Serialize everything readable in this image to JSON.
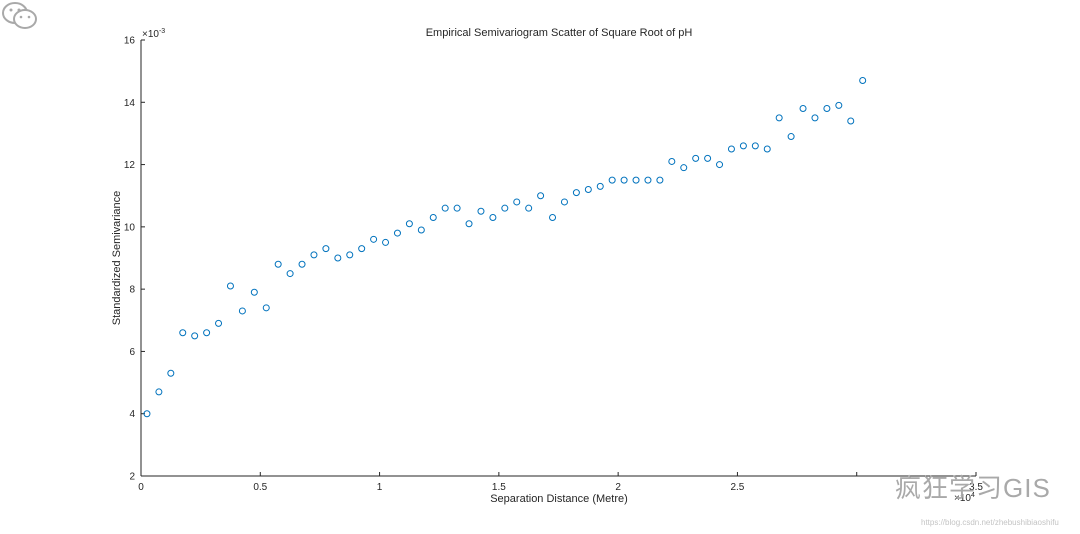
{
  "chart_data": {
    "type": "scatter",
    "title": "Empirical Semivariogram Scatter of Square Root of pH",
    "xlabel": "Separation Distance (Metre)",
    "ylabel": "Standardized Semivariance",
    "xlim": [
      0,
      35000
    ],
    "ylim": [
      0.002,
      0.016
    ],
    "x_exponent_label": "×10",
    "x_exponent_power": "4",
    "y_exponent_label": "×10",
    "y_exponent_power": "-3",
    "x_ticks": [
      0,
      5000,
      10000,
      15000,
      20000,
      25000,
      30000,
      35000
    ],
    "x_tick_labels": [
      "0",
      "0.5",
      "1",
      "1.5",
      "2",
      "2.5",
      "",
      "3.5"
    ],
    "y_ticks": [
      0.002,
      0.004,
      0.006,
      0.008,
      0.01,
      0.012,
      0.014,
      0.016
    ],
    "y_tick_labels": [
      "2",
      "4",
      "6",
      "8",
      "10",
      "12",
      "14",
      "16"
    ],
    "marker_color": "#0072BD",
    "grid": false,
    "legend": "none",
    "points": [
      [
        250,
        0.004
      ],
      [
        750,
        0.0047
      ],
      [
        1250,
        0.0053
      ],
      [
        1750,
        0.0066
      ],
      [
        2250,
        0.0065
      ],
      [
        2750,
        0.0066
      ],
      [
        3250,
        0.0069
      ],
      [
        3750,
        0.0081
      ],
      [
        4250,
        0.0073
      ],
      [
        4750,
        0.0079
      ],
      [
        5250,
        0.0074
      ],
      [
        5750,
        0.0088
      ],
      [
        6250,
        0.0085
      ],
      [
        6750,
        0.0088
      ],
      [
        7250,
        0.0091
      ],
      [
        7750,
        0.0093
      ],
      [
        8250,
        0.009
      ],
      [
        8750,
        0.0091
      ],
      [
        9250,
        0.0093
      ],
      [
        9750,
        0.0096
      ],
      [
        10250,
        0.0095
      ],
      [
        10750,
        0.0098
      ],
      [
        11250,
        0.0101
      ],
      [
        11750,
        0.0099
      ],
      [
        12250,
        0.0103
      ],
      [
        12750,
        0.0106
      ],
      [
        13250,
        0.0106
      ],
      [
        13750,
        0.0101
      ],
      [
        14250,
        0.0105
      ],
      [
        14750,
        0.0103
      ],
      [
        15250,
        0.0106
      ],
      [
        15750,
        0.0108
      ],
      [
        16250,
        0.0106
      ],
      [
        16750,
        0.011
      ],
      [
        17250,
        0.0103
      ],
      [
        17750,
        0.0108
      ],
      [
        18250,
        0.0111
      ],
      [
        18750,
        0.0112
      ],
      [
        19250,
        0.0113
      ],
      [
        19750,
        0.0115
      ],
      [
        20250,
        0.0115
      ],
      [
        20750,
        0.0115
      ],
      [
        21250,
        0.0115
      ],
      [
        21750,
        0.0115
      ],
      [
        22250,
        0.0121
      ],
      [
        22750,
        0.0119
      ],
      [
        23250,
        0.0122
      ],
      [
        23750,
        0.0122
      ],
      [
        24250,
        0.012
      ],
      [
        24750,
        0.0125
      ],
      [
        25250,
        0.0126
      ],
      [
        25750,
        0.0126
      ],
      [
        26250,
        0.0125
      ],
      [
        26750,
        0.0135
      ],
      [
        27250,
        0.0129
      ],
      [
        27750,
        0.0138
      ],
      [
        28250,
        0.0135
      ],
      [
        28750,
        0.0138
      ],
      [
        29250,
        0.0139
      ],
      [
        29750,
        0.0134
      ],
      [
        30250,
        0.0147
      ]
    ]
  },
  "watermark": {
    "logo_text": "疯狂学习GIS",
    "url": "https://blog.csdn.net/zhebushibiaoshifu",
    "icon": "wechat-icon"
  }
}
